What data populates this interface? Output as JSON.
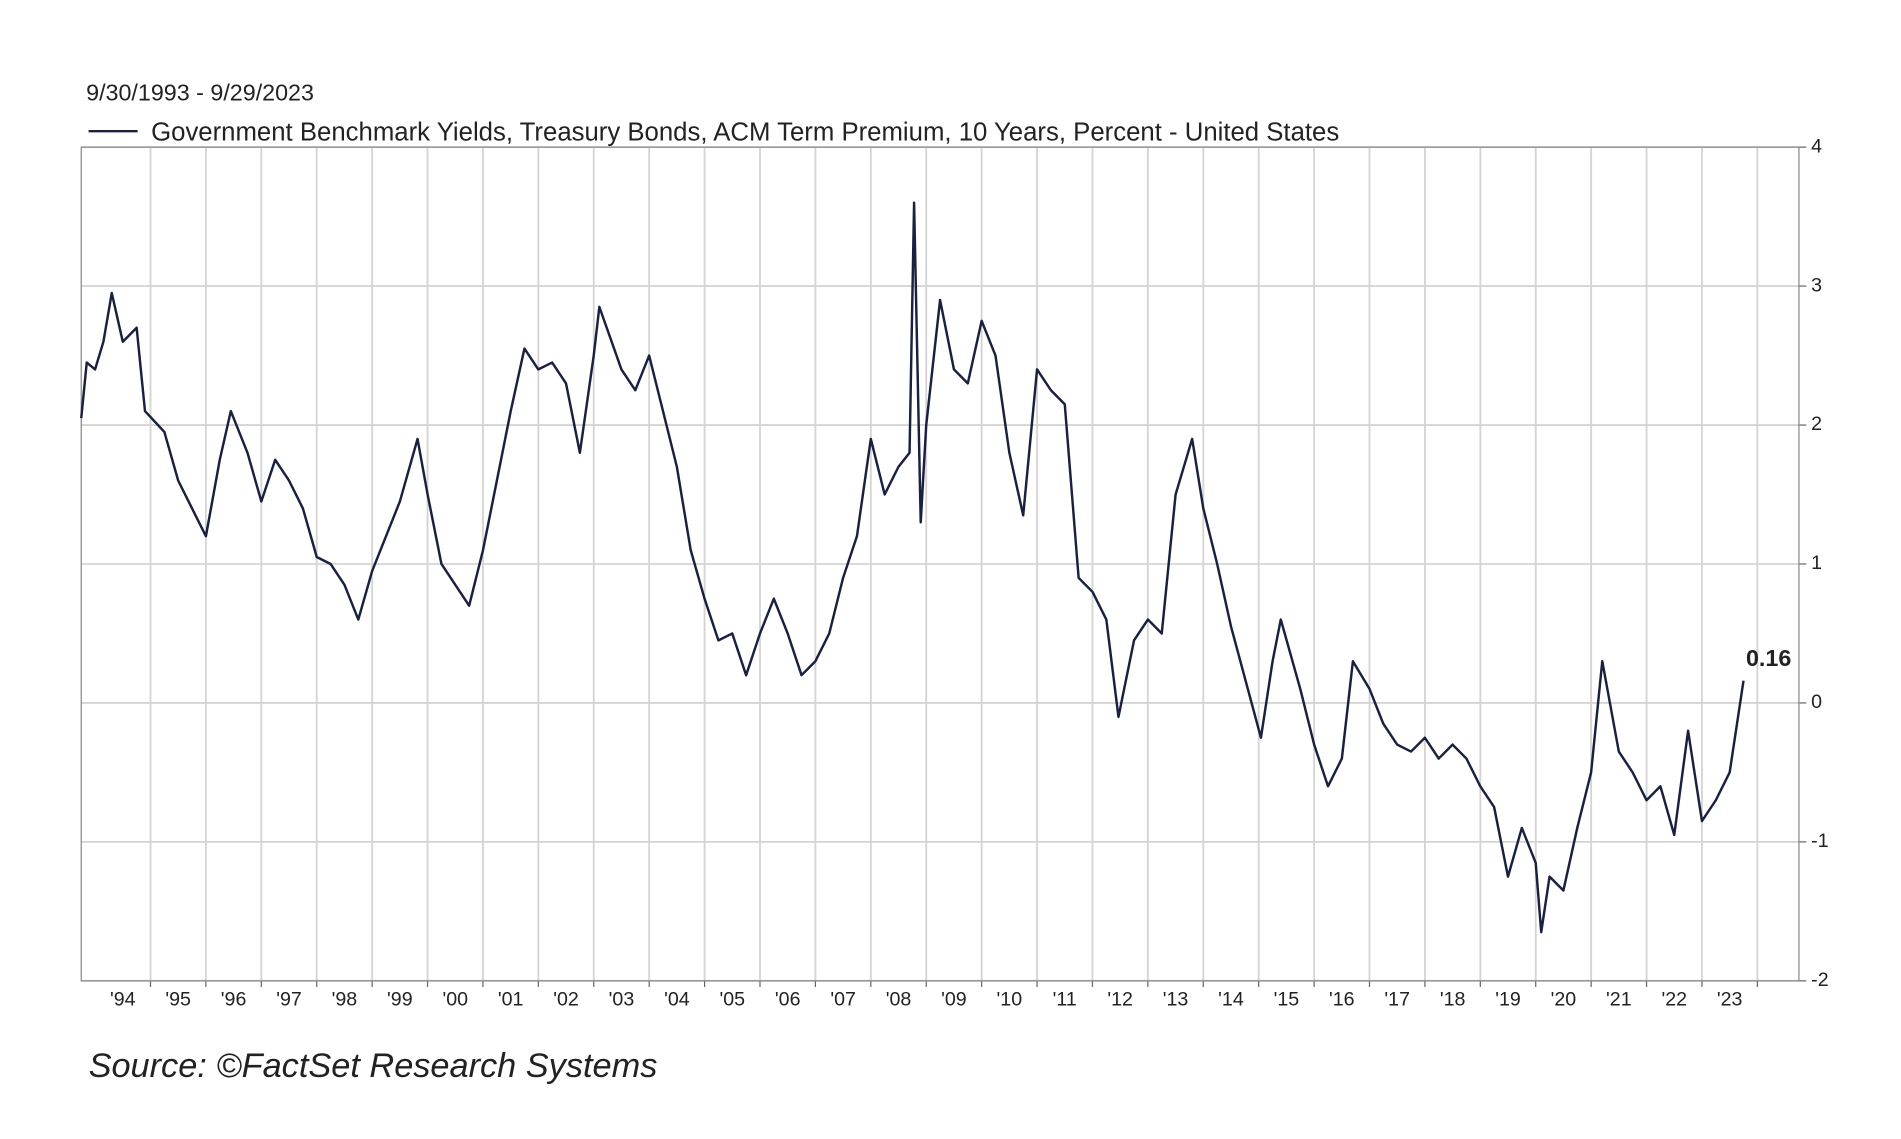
{
  "chart_data": {
    "type": "line",
    "subtitle": "9/30/1993 - 9/29/2023",
    "source": "Source: ©FactSet Research Systems",
    "annotation": 0.16,
    "x": [
      1993.75,
      1993.85,
      1994.0,
      1994.15,
      1994.3,
      1994.5,
      1994.75,
      1994.9,
      1995.25,
      1995.5,
      1995.75,
      1996.0,
      1996.25,
      1996.45,
      1996.75,
      1997.0,
      1997.25,
      1997.5,
      1997.75,
      1998.0,
      1998.25,
      1998.5,
      1998.75,
      1999.0,
      1999.25,
      1999.5,
      1999.82,
      2000.0,
      2000.25,
      2000.5,
      2000.75,
      2001.0,
      2001.25,
      2001.5,
      2001.75,
      2002.0,
      2002.25,
      2002.5,
      2002.75,
      2003.0,
      2003.1,
      2003.5,
      2003.75,
      2004.0,
      2004.25,
      2004.5,
      2004.75,
      2005.0,
      2005.25,
      2005.5,
      2005.75,
      2006.0,
      2006.25,
      2006.5,
      2006.75,
      2007.0,
      2007.25,
      2007.5,
      2007.75,
      2008.0,
      2008.25,
      2008.5,
      2008.7,
      2008.78,
      2008.9,
      2009.0,
      2009.25,
      2009.5,
      2009.75,
      2010.0,
      2010.25,
      2010.5,
      2010.75,
      2011.0,
      2011.25,
      2011.5,
      2011.75,
      2012.0,
      2012.25,
      2012.47,
      2012.75,
      2013.0,
      2013.25,
      2013.5,
      2013.8,
      2014.0,
      2014.25,
      2014.5,
      2015.04,
      2015.25,
      2015.4,
      2015.75,
      2016.0,
      2016.25,
      2016.5,
      2016.7,
      2017.0,
      2017.25,
      2017.5,
      2017.75,
      2018.0,
      2018.25,
      2018.5,
      2018.75,
      2019.0,
      2019.25,
      2019.5,
      2019.75,
      2020.0,
      2020.1,
      2020.25,
      2020.5,
      2020.75,
      2021.0,
      2021.2,
      2021.5,
      2021.75,
      2022.0,
      2022.25,
      2022.5,
      2022.75,
      2023.0,
      2023.25,
      2023.5,
      2023.75
    ],
    "series": [
      {
        "name": "Government Benchmark Yields, Treasury Bonds, ACM Term Premium, 10 Years, Percent - United States",
        "color": "#1a2040",
        "values": [
          2.05,
          2.45,
          2.4,
          2.6,
          2.95,
          2.6,
          2.7,
          2.1,
          1.95,
          1.6,
          1.4,
          1.2,
          1.75,
          2.1,
          1.8,
          1.45,
          1.75,
          1.6,
          1.4,
          1.05,
          1.0,
          0.85,
          0.6,
          0.95,
          1.2,
          1.45,
          1.9,
          1.5,
          1.0,
          0.85,
          0.7,
          1.1,
          1.6,
          2.1,
          2.55,
          2.4,
          2.45,
          2.3,
          1.8,
          2.5,
          2.85,
          2.4,
          2.25,
          2.5,
          2.1,
          1.7,
          1.1,
          0.75,
          0.45,
          0.5,
          0.2,
          0.5,
          0.75,
          0.5,
          0.2,
          0.3,
          0.5,
          0.9,
          1.2,
          1.9,
          1.5,
          1.7,
          1.8,
          3.6,
          1.3,
          2.0,
          2.9,
          2.4,
          2.3,
          2.75,
          2.5,
          1.8,
          1.35,
          2.4,
          2.25,
          2.15,
          0.9,
          0.8,
          0.6,
          -0.1,
          0.45,
          0.6,
          0.5,
          1.5,
          1.9,
          1.4,
          1.0,
          0.55,
          -0.25,
          0.3,
          0.6,
          0.1,
          -0.3,
          -0.6,
          -0.4,
          0.3,
          0.1,
          -0.15,
          -0.3,
          -0.35,
          -0.25,
          -0.4,
          -0.3,
          -0.4,
          -0.6,
          -0.75,
          -1.25,
          -0.9,
          -1.15,
          -1.65,
          -1.25,
          -1.35,
          -0.9,
          -0.5,
          0.3,
          -0.35,
          -0.5,
          -0.7,
          -0.6,
          -0.95,
          -0.2,
          -0.85,
          -0.7,
          -0.5,
          0.16
        ]
      }
    ],
    "xlim": [
      1993.75,
      2024.75
    ],
    "xticks": [
      {
        "value": 1994.5,
        "label": "'94"
      },
      {
        "value": 1995.5,
        "label": "'95"
      },
      {
        "value": 1996.5,
        "label": "'96"
      },
      {
        "value": 1997.5,
        "label": "'97"
      },
      {
        "value": 1998.5,
        "label": "'98"
      },
      {
        "value": 1999.5,
        "label": "'99"
      },
      {
        "value": 2000.5,
        "label": "'00"
      },
      {
        "value": 2001.5,
        "label": "'01"
      },
      {
        "value": 2002.5,
        "label": "'02"
      },
      {
        "value": 2003.5,
        "label": "'03"
      },
      {
        "value": 2004.5,
        "label": "'04"
      },
      {
        "value": 2005.5,
        "label": "'05"
      },
      {
        "value": 2006.5,
        "label": "'06"
      },
      {
        "value": 2007.5,
        "label": "'07"
      },
      {
        "value": 2008.5,
        "label": "'08"
      },
      {
        "value": 2009.5,
        "label": "'09"
      },
      {
        "value": 2010.5,
        "label": "'10"
      },
      {
        "value": 2011.5,
        "label": "'11"
      },
      {
        "value": 2012.5,
        "label": "'12"
      },
      {
        "value": 2013.5,
        "label": "'13"
      },
      {
        "value": 2014.5,
        "label": "'14"
      },
      {
        "value": 2015.5,
        "label": "'15"
      },
      {
        "value": 2016.5,
        "label": "'16"
      },
      {
        "value": 2017.5,
        "label": "'17"
      },
      {
        "value": 2018.5,
        "label": "'18"
      },
      {
        "value": 2019.5,
        "label": "'19"
      },
      {
        "value": 2020.5,
        "label": "'20"
      },
      {
        "value": 2021.5,
        "label": "'21"
      },
      {
        "value": 2022.5,
        "label": "'22"
      },
      {
        "value": 2023.5,
        "label": "'23"
      }
    ],
    "ylim": [
      -2,
      4
    ],
    "yticks": [
      -2,
      -1,
      0,
      1,
      2,
      3,
      4
    ],
    "grid": true
  }
}
